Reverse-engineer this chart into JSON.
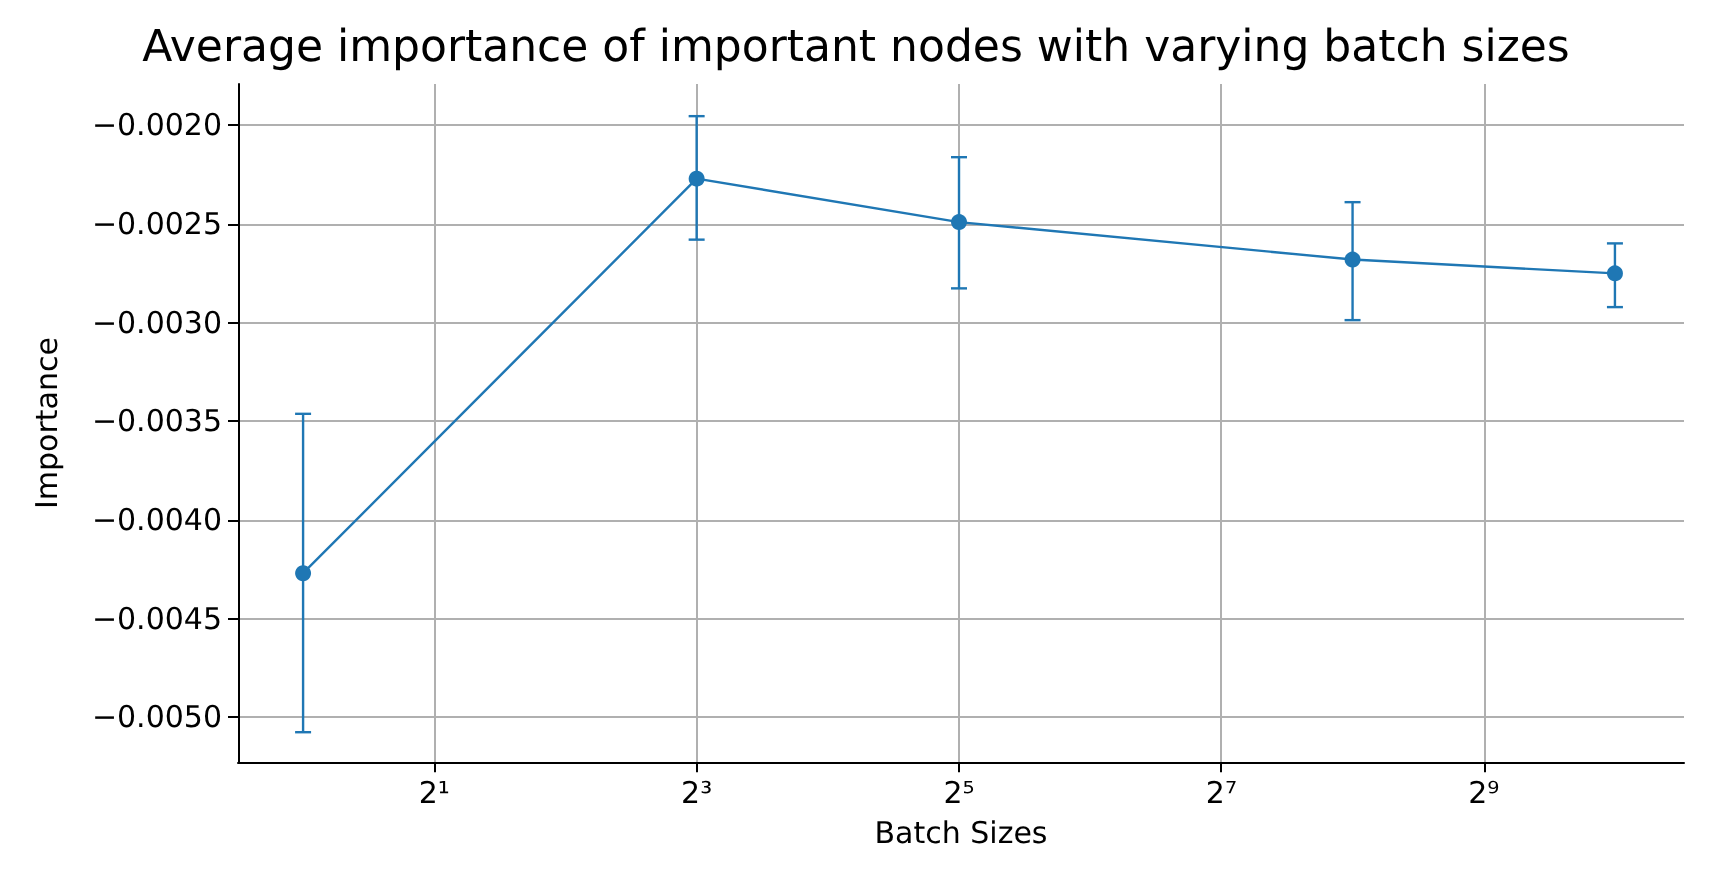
{
  "chart_data": {
    "type": "line",
    "title": "Average importance of important nodes with varying batch sizes",
    "xlabel": "Batch Sizes",
    "ylabel": "Importance",
    "x": [
      1,
      8,
      32,
      256,
      1024
    ],
    "series": [
      {
        "color": "#1f77b4",
        "values": [
          -0.00427,
          -0.00227,
          -0.00249,
          -0.00268,
          -0.00275
        ],
        "errors": [
          [
            -0.005076,
            -0.003462
          ],
          [
            -0.002579,
            -0.001953
          ],
          [
            -0.002826,
            -0.002161
          ],
          [
            -0.002987,
            -0.002389
          ],
          [
            -0.002921,
            -0.002598
          ]
        ]
      }
    ],
    "log": "x",
    "xlim": [
      0.709,
      1475
    ],
    "xticks": [
      {
        "value": 2,
        "label": "2¹"
      },
      {
        "value": 8,
        "label": "2³"
      },
      {
        "value": 32,
        "label": "2⁵"
      },
      {
        "value": 128,
        "label": "2⁷"
      },
      {
        "value": 512,
        "label": "2⁹"
      }
    ],
    "ylim": [
      -0.005228,
      -0.00179
    ],
    "yticks": [
      {
        "value": -0.005,
        "label": "−0.0050"
      },
      {
        "value": -0.0045,
        "label": "−0.0045"
      },
      {
        "value": -0.004,
        "label": "−0.0040"
      },
      {
        "value": -0.0035,
        "label": "−0.0035"
      },
      {
        "value": -0.003,
        "label": "−0.0030"
      },
      {
        "value": -0.0025,
        "label": "−0.0025"
      },
      {
        "value": -0.002,
        "label": "−0.0020"
      }
    ],
    "grid": true,
    "marker": "circle",
    "line_style": "solid"
  }
}
